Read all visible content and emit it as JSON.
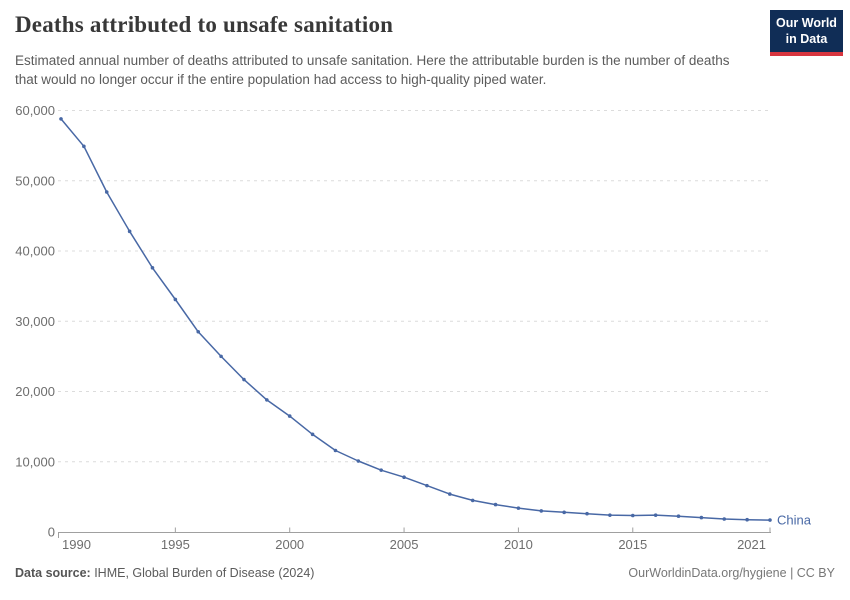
{
  "header": {
    "title": "Deaths attributed to unsafe sanitation",
    "subtitle": "Estimated annual number of deaths attributed to unsafe sanitation. Here the attributable burden is the number of deaths that would no longer occur if the entire population had access to high-quality piped water.",
    "logo": {
      "line1": "Our World",
      "line2": "in Data"
    }
  },
  "colors": {
    "line": "#4868a5",
    "logo_bg": "#102d56",
    "logo_accent": "#d8353f",
    "gridline": "#dcdcdc",
    "axis": "#a0a0a0",
    "tick_label": "#6e6e6e"
  },
  "chart_data": {
    "type": "line",
    "title": "Deaths attributed to unsafe sanitation",
    "xlabel": "",
    "ylabel": "",
    "x": [
      1990,
      1991,
      1992,
      1993,
      1994,
      1995,
      1996,
      1997,
      1998,
      1999,
      2000,
      2001,
      2002,
      2003,
      2004,
      2005,
      2006,
      2007,
      2008,
      2009,
      2010,
      2011,
      2012,
      2013,
      2014,
      2015,
      2016,
      2017,
      2018,
      2019,
      2020,
      2021
    ],
    "series": [
      {
        "name": "China",
        "values": [
          58800,
          54900,
          48400,
          42800,
          37600,
          33100,
          28500,
          25000,
          21700,
          18800,
          16500,
          13900,
          11600,
          10100,
          8800,
          7800,
          6600,
          5400,
          4500,
          3900,
          3400,
          3000,
          2800,
          2600,
          2400,
          2350,
          2400,
          2250,
          2050,
          1850,
          1750,
          1700
        ]
      }
    ],
    "ylim": [
      0,
      60000
    ],
    "yticks": [
      0,
      10000,
      20000,
      30000,
      40000,
      50000,
      60000
    ],
    "xticks": [
      1990,
      1995,
      2000,
      2005,
      2010,
      2015,
      2021
    ],
    "grid": "horizontal-dashed",
    "legend_position": "end-of-line",
    "markers": true
  },
  "footer": {
    "datasource_label": "Data source:",
    "datasource_text": " IHME, Global Burden of Disease (2024)",
    "credit": "OurWorldinData.org/hygiene | CC BY"
  }
}
